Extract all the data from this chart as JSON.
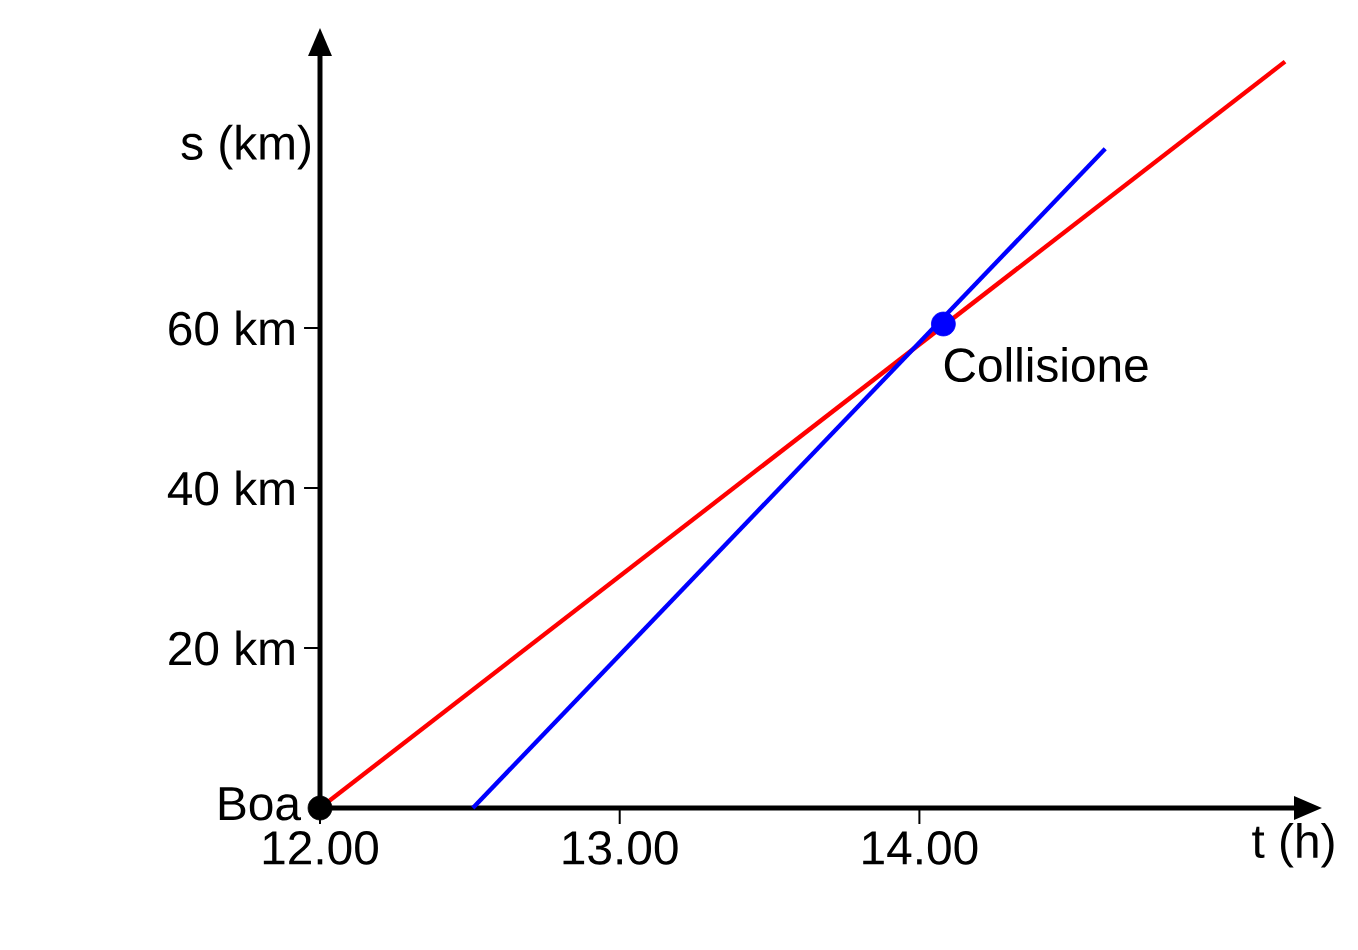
{
  "chart_data": {
    "type": "line",
    "xlabel": "t (h)",
    "ylabel": "s (km)",
    "xlim": [
      12,
      15.25
    ],
    "ylim": [
      0,
      94
    ],
    "xticks": [
      {
        "value": 12,
        "label": "12.00"
      },
      {
        "value": 13,
        "label": "13.00"
      },
      {
        "value": 14,
        "label": "14.00"
      }
    ],
    "yticks": [
      {
        "value": 20,
        "label": "20 km"
      },
      {
        "value": 40,
        "label": "40 km"
      },
      {
        "value": 60,
        "label": "60 km"
      }
    ],
    "series": [
      {
        "color": "#ff0000",
        "x": [
          12,
          15.22
        ],
        "values": [
          0,
          93.3
        ]
      },
      {
        "color": "#0000ff",
        "x": [
          12.51,
          14.62
        ],
        "values": [
          0,
          82.4
        ]
      },
      {
        "type": "scatter",
        "color": "#000000",
        "x": [
          12
        ],
        "values": [
          0
        ]
      },
      {
        "type": "scatter",
        "color": "#0000ff",
        "x": [
          14.08
        ],
        "values": [
          60.5
        ]
      }
    ],
    "annotations": [
      {
        "text": "Boa",
        "x": 12,
        "y": 0
      },
      {
        "text": "Collisione",
        "x": 14.08,
        "y": 60.5
      }
    ]
  }
}
